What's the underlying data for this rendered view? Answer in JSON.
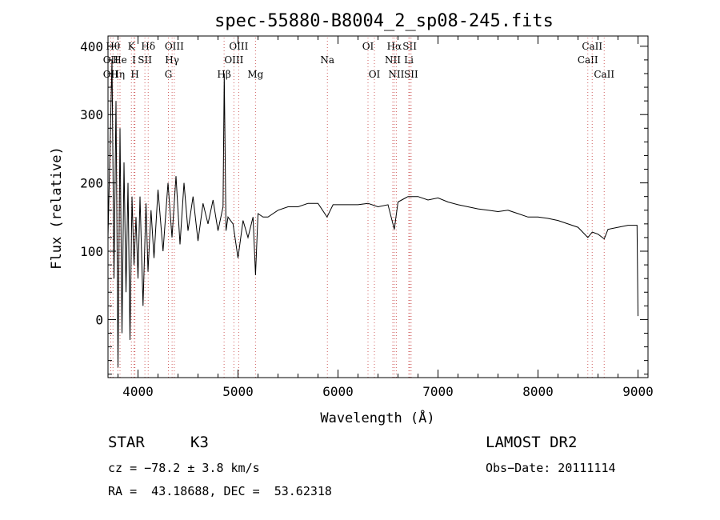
{
  "chart_data": {
    "type": "line",
    "title": "spec-55880-B8004_2_sp08-245.fits",
    "xlabel": "Wavelength (Å)",
    "ylabel": "Flux (relative)",
    "xlim": [
      3700,
      9100
    ],
    "ylim": [
      -85,
      415
    ],
    "xticks": [
      4000,
      5000,
      6000,
      7000,
      8000,
      9000
    ],
    "yticks": [
      0,
      100,
      200,
      300,
      400
    ],
    "grid": false,
    "series": [
      {
        "x": [
          3700,
          3720,
          3740,
          3760,
          3780,
          3800,
          3820,
          3840,
          3860,
          3880,
          3900,
          3920,
          3940,
          3960,
          3980,
          4000,
          4020,
          4050,
          4080,
          4100,
          4130,
          4160,
          4200,
          4250,
          4300,
          4340,
          4380,
          4420,
          4460,
          4500,
          4550,
          4600,
          4650,
          4700,
          4750,
          4800,
          4850,
          4862,
          4880,
          4900,
          4950,
          5000,
          5050,
          5100,
          5150,
          5175,
          5200,
          5250,
          5300,
          5400,
          5500,
          5600,
          5700,
          5800,
          5890,
          5950,
          6000,
          6100,
          6200,
          6300,
          6400,
          6500,
          6563,
          6600,
          6700,
          6800,
          6900,
          7000,
          7100,
          7200,
          7300,
          7400,
          7500,
          7600,
          7700,
          7800,
          7900,
          8000,
          8100,
          8200,
          8300,
          8400,
          8498,
          8542,
          8600,
          8662,
          8700,
          8800,
          8900,
          8990,
          9000
        ],
        "y": [
          120,
          250,
          380,
          60,
          320,
          -70,
          280,
          -20,
          230,
          40,
          200,
          -30,
          180,
          80,
          150,
          60,
          180,
          20,
          170,
          70,
          160,
          90,
          190,
          100,
          200,
          120,
          210,
          110,
          200,
          130,
          180,
          115,
          170,
          140,
          175,
          130,
          165,
          360,
          130,
          150,
          140,
          90,
          145,
          120,
          150,
          65,
          155,
          150,
          150,
          160,
          165,
          165,
          170,
          170,
          150,
          168,
          168,
          168,
          168,
          170,
          165,
          168,
          132,
          172,
          180,
          180,
          175,
          178,
          172,
          168,
          165,
          162,
          160,
          158,
          160,
          155,
          150,
          150,
          148,
          145,
          140,
          135,
          120,
          128,
          125,
          118,
          132,
          135,
          138,
          138,
          5
        ]
      }
    ],
    "annotations": [
      {
        "label": "OII",
        "x": 3727,
        "row": 2
      },
      {
        "label": "OII",
        "x": 3727,
        "row": 3
      },
      {
        "label": "Hθ",
        "x": 3750,
        "row": 1
      },
      {
        "label": "Hη",
        "x": 3798,
        "row": 3
      },
      {
        "label": "He",
        "x": 3820,
        "row": 2
      },
      {
        "label": "K",
        "x": 3934,
        "row": 1
      },
      {
        "label": "H",
        "x": 3969,
        "row": 3
      },
      {
        "label": "I",
        "x": 3960,
        "row": 2
      },
      {
        "label": "SII",
        "x": 4069,
        "row": 2
      },
      {
        "label": "Hδ",
        "x": 4102,
        "row": 1
      },
      {
        "label": "G",
        "x": 4304,
        "row": 3
      },
      {
        "label": "Hγ",
        "x": 4341,
        "row": 2
      },
      {
        "label": "OIII",
        "x": 4363,
        "row": 1
      },
      {
        "label": "Hβ",
        "x": 4861,
        "row": 3
      },
      {
        "label": "OIII",
        "x": 4959,
        "row": 2
      },
      {
        "label": "OIII",
        "x": 5007,
        "row": 1
      },
      {
        "label": "Mg",
        "x": 5175,
        "row": 3
      },
      {
        "label": "Na",
        "x": 5894,
        "row": 2
      },
      {
        "label": "OI",
        "x": 6300,
        "row": 1
      },
      {
        "label": "OI",
        "x": 6364,
        "row": 3
      },
      {
        "label": "NII",
        "x": 6548,
        "row": 2
      },
      {
        "label": "Hα",
        "x": 6563,
        "row": 1
      },
      {
        "label": "NII",
        "x": 6583,
        "row": 3
      },
      {
        "label": "SII",
        "x": 6717,
        "row": 1
      },
      {
        "label": "Li",
        "x": 6708,
        "row": 2
      },
      {
        "label": "SII",
        "x": 6731,
        "row": 3
      },
      {
        "label": "CaII",
        "x": 8498,
        "row": 2
      },
      {
        "label": "CaII",
        "x": 8542,
        "row": 1
      },
      {
        "label": "CaII",
        "x": 8662,
        "row": 3
      }
    ]
  },
  "info": {
    "object_class": "STAR",
    "subclass": "K3",
    "cz": "cz = −78.2 ± 3.8 km/s",
    "coords": "RA =  43.18688, DEC =  53.62318",
    "survey": "LAMOST DR2",
    "obs_date": "Obs−Date: 20111114"
  }
}
